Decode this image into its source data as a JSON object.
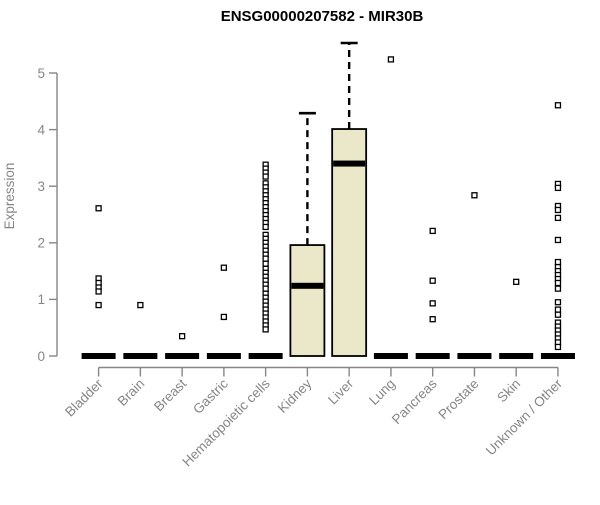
{
  "chart_data": {
    "type": "boxplot",
    "title": "ENSG00000207582 - MIR30B",
    "ylabel": "Expression",
    "xlabel": "",
    "ylim": [
      0,
      5.6
    ],
    "yticks": [
      0,
      1,
      2,
      3,
      4,
      5
    ],
    "grid": false,
    "legend": "none",
    "categories": [
      "Bladder",
      "Brain",
      "Breast",
      "Gastric",
      "Hematopoietic cells",
      "Kidney",
      "Liver",
      "Lung",
      "Pancreas",
      "Prostate",
      "Skin",
      "Unknown / Other"
    ],
    "boxes": [
      {
        "category": "Bladder",
        "q1": 0,
        "median": 0,
        "q3": 0,
        "whisker_low": 0,
        "whisker_high": 0,
        "outliers": [
          2.61,
          1.37,
          1.29,
          1.21,
          1.14,
          0.9
        ]
      },
      {
        "category": "Brain",
        "q1": 0,
        "median": 0,
        "q3": 0,
        "whisker_low": 0,
        "whisker_high": 0,
        "outliers": [
          0.9
        ]
      },
      {
        "category": "Breast",
        "q1": 0,
        "median": 0,
        "q3": 0,
        "whisker_low": 0,
        "whisker_high": 0,
        "outliers": [
          0.35
        ]
      },
      {
        "category": "Gastric",
        "q1": 0,
        "median": 0,
        "q3": 0,
        "whisker_low": 0,
        "whisker_high": 0,
        "outliers": [
          1.56,
          0.69
        ]
      },
      {
        "category": "Hematopoietic cells",
        "q1": 0,
        "median": 0,
        "q3": 0,
        "whisker_low": 0,
        "whisker_high": 0,
        "outliers": [
          3.38,
          3.31,
          3.24,
          3.17,
          3.05,
          2.98,
          2.91,
          2.84,
          2.77,
          2.7,
          2.63,
          2.56,
          2.49,
          2.42,
          2.35,
          2.28,
          2.14,
          2.07,
          2.0,
          1.93,
          1.86,
          1.79,
          1.72,
          1.63,
          1.54,
          1.47,
          1.4,
          1.33,
          1.26,
          1.19,
          1.1,
          1.03,
          0.96,
          0.89,
          0.82,
          0.75,
          0.68,
          0.61,
          0.54,
          0.47
        ]
      },
      {
        "category": "Kidney",
        "q1": 0,
        "median": 1.24,
        "q3": 1.96,
        "whisker_low": 0,
        "whisker_high": 4.29,
        "outliers": []
      },
      {
        "category": "Liver",
        "q1": 0,
        "median": 3.4,
        "q3": 4.01,
        "whisker_low": 0,
        "whisker_high": 5.53,
        "outliers": []
      },
      {
        "category": "Lung",
        "q1": 0,
        "median": 0,
        "q3": 0,
        "whisker_low": 0,
        "whisker_high": 0,
        "outliers": [
          5.24
        ]
      },
      {
        "category": "Pancreas",
        "q1": 0,
        "median": 0,
        "q3": 0,
        "whisker_low": 0,
        "whisker_high": 0,
        "outliers": [
          2.21,
          1.33,
          0.93,
          0.65
        ]
      },
      {
        "category": "Prostate",
        "q1": 0,
        "median": 0,
        "q3": 0,
        "whisker_low": 0,
        "whisker_high": 0,
        "outliers": [
          2.84
        ]
      },
      {
        "category": "Skin",
        "q1": 0,
        "median": 0,
        "q3": 0,
        "whisker_low": 0,
        "whisker_high": 0,
        "outliers": [
          1.31
        ]
      },
      {
        "category": "Unknown / Other",
        "q1": 0,
        "median": 0,
        "q3": 0,
        "whisker_low": 0,
        "whisker_high": 0,
        "outliers": [
          4.43,
          3.04,
          2.97,
          2.65,
          2.58,
          2.44,
          2.05,
          1.66,
          1.57,
          1.5,
          1.43,
          1.36,
          1.29,
          1.19,
          0.95,
          0.82,
          0.73,
          0.59,
          0.52,
          0.45,
          0.38,
          0.31,
          0.24,
          0.16
        ]
      }
    ],
    "colors": {
      "box_fill": "#ebe7c9",
      "box_border": "#000000",
      "median": "#000000",
      "whisker": "#000000",
      "outlier_border": "#000000",
      "outlier_fill": "#ffffff",
      "axis": "#868686",
      "title": "#000000",
      "background": "#ffffff"
    }
  }
}
